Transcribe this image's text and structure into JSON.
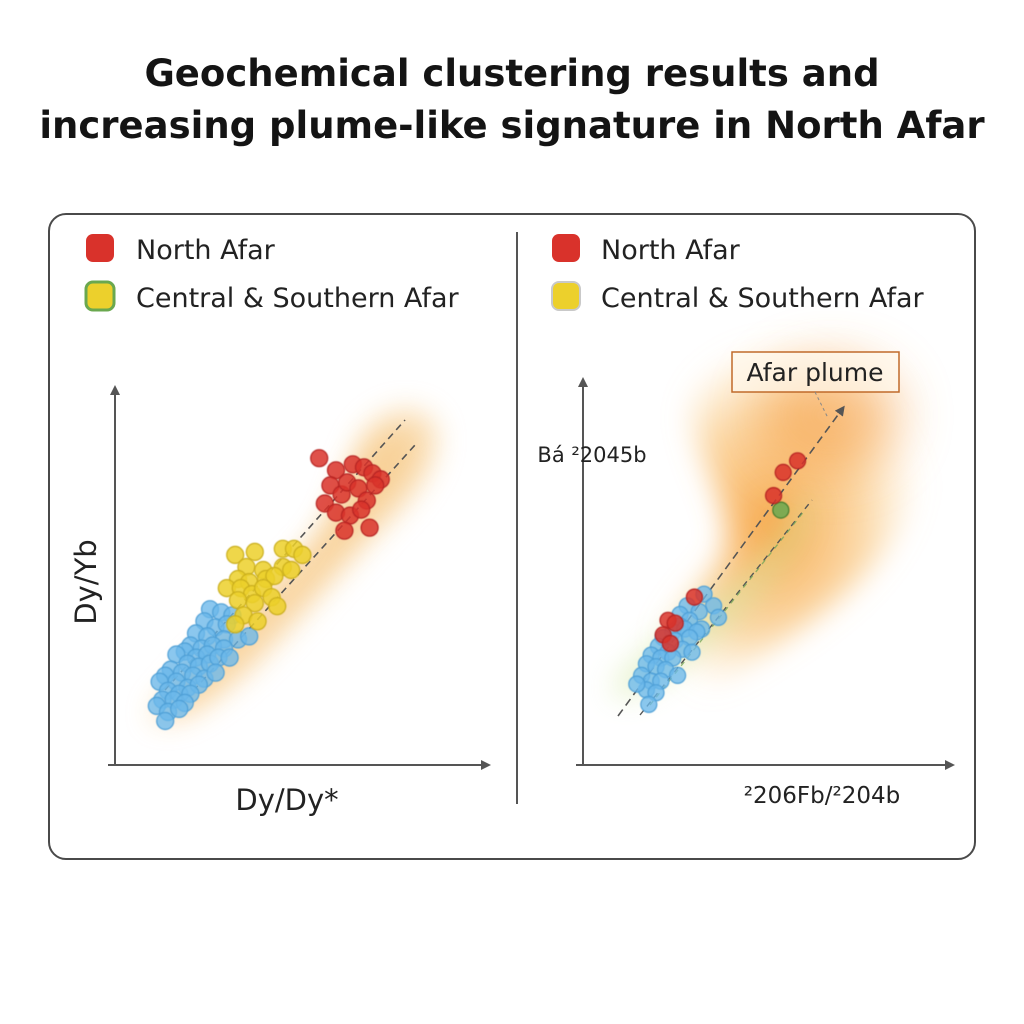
{
  "header": {
    "title_line1": "Geochemical clustering results and",
    "title_line2": "increasing plume-like signature in North Afar"
  },
  "colors": {
    "north": "#d9322b",
    "central": "#ecd02c",
    "blue": "#6ab7ea",
    "green": "#6aa84f",
    "axis": "#555555"
  },
  "chart_data": [
    {
      "type": "scatter",
      "title": "",
      "xlabel": "Dy/Dy*",
      "ylabel": "Dy/Yb",
      "xlim": [
        0,
        100
      ],
      "ylim": [
        0,
        100
      ],
      "legend": {
        "placement": "top-left",
        "entries": [
          "North Afar",
          "Central & Southern Afar"
        ]
      },
      "series": [
        {
          "name": "North Afar",
          "color": "#d9322b",
          "points": [
            [
              64,
              88
            ],
            [
              70,
              84
            ],
            [
              76,
              86
            ],
            [
              80,
              85
            ],
            [
              83,
              83
            ],
            [
              86,
              81
            ],
            [
              68,
              79
            ],
            [
              72,
              76
            ],
            [
              74,
              80
            ],
            [
              78,
              78
            ],
            [
              81,
              74
            ],
            [
              84,
              79
            ],
            [
              66,
              73
            ],
            [
              70,
              70
            ],
            [
              75,
              69
            ],
            [
              79,
              71
            ],
            [
              82,
              65
            ],
            [
              73,
              64
            ]
          ]
        },
        {
          "name": "Central & Southern Afar",
          "color": "#ecd02c",
          "points": [
            [
              34,
              56
            ],
            [
              41,
              57
            ],
            [
              51,
              58
            ],
            [
              55,
              58
            ],
            [
              58,
              56
            ],
            [
              38,
              52
            ],
            [
              44,
              51
            ],
            [
              51,
              52
            ],
            [
              54,
              51
            ],
            [
              35,
              48
            ],
            [
              39,
              47
            ],
            [
              45,
              48
            ],
            [
              48,
              49
            ],
            [
              31,
              45
            ],
            [
              36,
              45
            ],
            [
              40,
              43
            ],
            [
              44,
              45
            ],
            [
              47,
              42
            ],
            [
              35,
              41
            ],
            [
              41,
              40
            ],
            [
              49,
              39
            ],
            [
              37,
              36
            ],
            [
              42,
              34
            ],
            [
              34,
              33
            ]
          ]
        },
        {
          "name": "",
          "color": "#6ab7ea",
          "points": [
            [
              25,
              38
            ],
            [
              29,
              37
            ],
            [
              33,
              36
            ],
            [
              23,
              34
            ],
            [
              27,
              32
            ],
            [
              31,
              33
            ],
            [
              20,
              30
            ],
            [
              24,
              29
            ],
            [
              30,
              28
            ],
            [
              35,
              28
            ],
            [
              18,
              26
            ],
            [
              22,
              25
            ],
            [
              26,
              26
            ],
            [
              30,
              25
            ],
            [
              39,
              29
            ],
            [
              16,
              24
            ],
            [
              20,
              22
            ],
            [
              24,
              23
            ],
            [
              13,
              23
            ],
            [
              17,
              20
            ],
            [
              21,
              19
            ],
            [
              25,
              20
            ],
            [
              28,
              22
            ],
            [
              11,
              18
            ],
            [
              15,
              17
            ],
            [
              19,
              16
            ],
            [
              23,
              15
            ],
            [
              27,
              17
            ],
            [
              32,
              22
            ],
            [
              9,
              16
            ],
            [
              13,
              14
            ],
            [
              17,
              12
            ],
            [
              21,
              13
            ],
            [
              7,
              14
            ],
            [
              10,
              11
            ],
            [
              14,
              10
            ],
            [
              18,
              10
            ],
            [
              8,
              8
            ],
            [
              12,
              8
            ],
            [
              16,
              7
            ],
            [
              6,
              6
            ],
            [
              10,
              4
            ],
            [
              14,
              5
            ],
            [
              9,
              1
            ]
          ]
        }
      ],
      "annotations": []
    },
    {
      "type": "scatter",
      "title": "",
      "xlabel": "²206Fb/²204b",
      "ylabel": "Bá ²2045b",
      "xlim": [
        0,
        100
      ],
      "ylim": [
        0,
        100
      ],
      "legend": {
        "placement": "top-left",
        "entries": [
          "North Afar",
          "Central & Southern Afar"
        ]
      },
      "series": [
        {
          "name": "North Afar",
          "color": "#d9322b",
          "points": [
            [
              74,
              88
            ],
            [
              68,
              84
            ],
            [
              64,
              76
            ],
            [
              31,
              41
            ],
            [
              20,
              33
            ],
            [
              23,
              32
            ],
            [
              18,
              28
            ],
            [
              21,
              25
            ]
          ]
        },
        {
          "name": "Central & Southern Afar",
          "color": "#ecd02c",
          "points": [
            [
              67,
              71
            ]
          ]
        },
        {
          "name": "",
          "color": "#6ab7ea",
          "points": [
            [
              35,
              42
            ],
            [
              39,
              38
            ],
            [
              28,
              38
            ],
            [
              33,
              36
            ],
            [
              25,
              35
            ],
            [
              41,
              34
            ],
            [
              29,
              33
            ],
            [
              25,
              31
            ],
            [
              34,
              30
            ],
            [
              22,
              29
            ],
            [
              27,
              30
            ],
            [
              32,
              29
            ],
            [
              18,
              27
            ],
            [
              23,
              26
            ],
            [
              29,
              27
            ],
            [
              16,
              24
            ],
            [
              20,
              22
            ],
            [
              26,
              23
            ],
            [
              13,
              21
            ],
            [
              17,
              20
            ],
            [
              22,
              20
            ],
            [
              30,
              22
            ],
            [
              11,
              18
            ],
            [
              15,
              17
            ],
            [
              19,
              16
            ],
            [
              24,
              14
            ],
            [
              9,
              14
            ],
            [
              13,
              12
            ],
            [
              17,
              12
            ],
            [
              11,
              9
            ],
            [
              15,
              8
            ],
            [
              7,
              11
            ],
            [
              12,
              4
            ]
          ]
        }
      ],
      "annotations": [
        "Afar plume"
      ]
    }
  ]
}
